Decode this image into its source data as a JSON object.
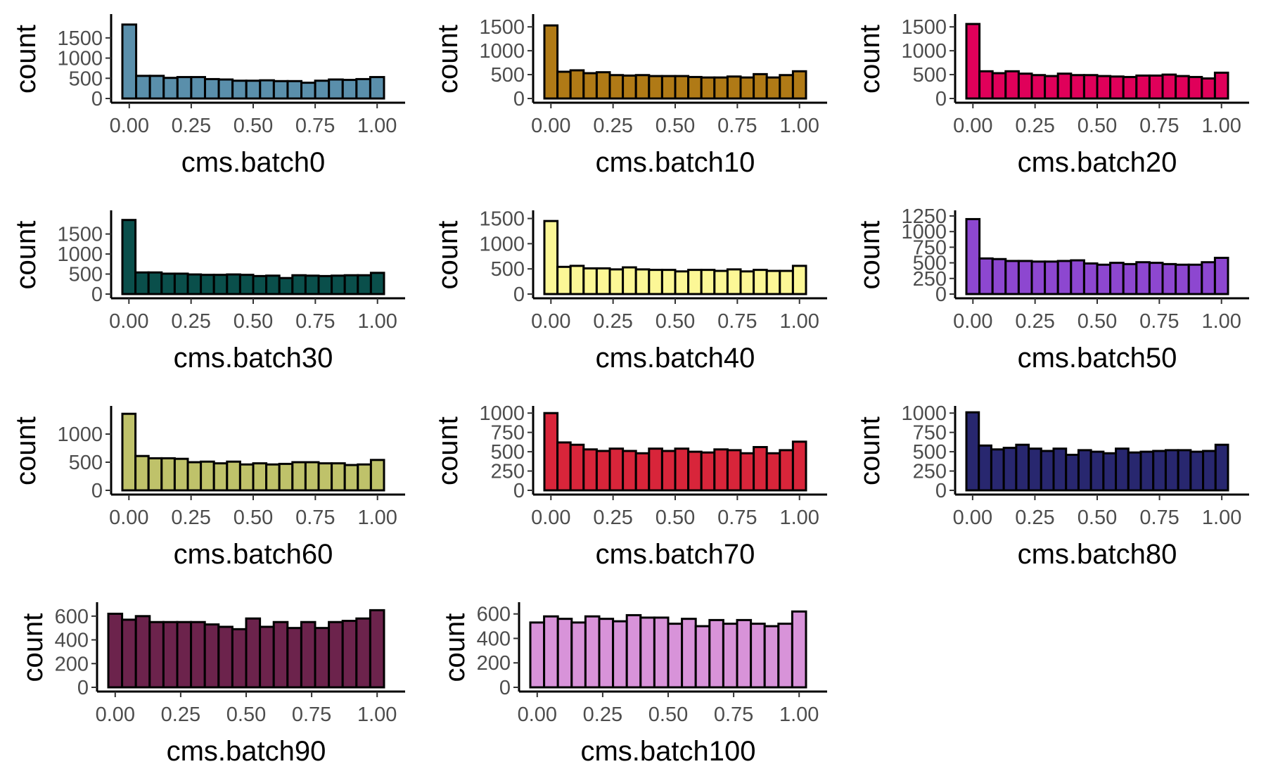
{
  "chart_data": [
    {
      "type": "bar",
      "xlabel": "cms.batch0",
      "ylabel": "count",
      "color": "#5a8fab",
      "xlim": [
        0,
        1
      ],
      "xticks": [
        "0.00",
        "0.25",
        "0.50",
        "0.75",
        "1.00"
      ],
      "ylim": [
        0,
        1950
      ],
      "yticks": [
        "0",
        "500",
        "1000",
        "1500"
      ],
      "ytick_values": [
        0,
        500,
        1000,
        1500
      ],
      "values": [
        1830,
        560,
        560,
        510,
        530,
        530,
        480,
        470,
        440,
        440,
        450,
        430,
        430,
        390,
        440,
        470,
        460,
        480,
        530
      ]
    },
    {
      "type": "bar",
      "xlabel": "cms.batch10",
      "ylabel": "count",
      "color": "#b07a16",
      "xlim": [
        0,
        1
      ],
      "xticks": [
        "0.00",
        "0.25",
        "0.50",
        "0.75",
        "1.00"
      ],
      "ylim": [
        0,
        1650
      ],
      "yticks": [
        "0",
        "500",
        "1000",
        "1500"
      ],
      "ytick_values": [
        0,
        500,
        1000,
        1500
      ],
      "values": [
        1530,
        560,
        590,
        530,
        550,
        490,
        480,
        490,
        470,
        470,
        470,
        450,
        440,
        440,
        460,
        440,
        510,
        440,
        490,
        570
      ]
    },
    {
      "type": "bar",
      "xlabel": "cms.batch20",
      "ylabel": "count",
      "color": "#e0005a",
      "xlim": [
        0,
        1
      ],
      "xticks": [
        "0.00",
        "0.25",
        "0.50",
        "0.75",
        "1.00"
      ],
      "ylim": [
        0,
        1650
      ],
      "yticks": [
        "0",
        "500",
        "1000",
        "1500"
      ],
      "ytick_values": [
        0,
        500,
        1000,
        1500
      ],
      "values": [
        1560,
        570,
        530,
        570,
        520,
        490,
        470,
        520,
        490,
        490,
        470,
        460,
        450,
        480,
        480,
        500,
        470,
        450,
        420,
        540
      ]
    },
    {
      "type": "bar",
      "xlabel": "cms.batch30",
      "ylabel": "count",
      "color": "#0a4f4b",
      "xlim": [
        0,
        1
      ],
      "xticks": [
        "0.00",
        "0.25",
        "0.50",
        "0.75",
        "1.00"
      ],
      "ylim": [
        0,
        1950
      ],
      "yticks": [
        "0",
        "500",
        "1000",
        "1500"
      ],
      "ytick_values": [
        0,
        500,
        1000,
        1500
      ],
      "values": [
        1850,
        540,
        540,
        510,
        510,
        490,
        480,
        480,
        490,
        480,
        450,
        460,
        400,
        470,
        460,
        450,
        460,
        470,
        470,
        530
      ]
    },
    {
      "type": "bar",
      "xlabel": "cms.batch40",
      "ylabel": "count",
      "color": "#fcf796",
      "xlim": [
        0,
        1
      ],
      "xticks": [
        "0.00",
        "0.25",
        "0.50",
        "0.75",
        "1.00"
      ],
      "ylim": [
        0,
        1550
      ],
      "yticks": [
        "0",
        "500",
        "1000",
        "1500"
      ],
      "ytick_values": [
        0,
        500,
        1000,
        1500
      ],
      "values": [
        1450,
        540,
        560,
        510,
        510,
        490,
        530,
        490,
        480,
        480,
        450,
        480,
        480,
        460,
        490,
        450,
        480,
        460,
        460,
        560
      ]
    },
    {
      "type": "bar",
      "xlabel": "cms.batch50",
      "ylabel": "count",
      "color": "#8d47d0",
      "xlim": [
        0,
        1
      ],
      "xticks": [
        "0.00",
        "0.25",
        "0.50",
        "0.75",
        "1.00"
      ],
      "ylim": [
        0,
        1250
      ],
      "yticks": [
        "0",
        "250",
        "500",
        "750",
        "1000",
        "1250"
      ],
      "ytick_values": [
        0,
        250,
        500,
        750,
        1000,
        1250
      ],
      "values": [
        1200,
        570,
        560,
        530,
        530,
        520,
        520,
        530,
        540,
        490,
        470,
        500,
        480,
        510,
        500,
        480,
        470,
        470,
        510,
        580
      ]
    },
    {
      "type": "bar",
      "xlabel": "cms.batch60",
      "ylabel": "count",
      "color": "#bfc26a",
      "xlim": [
        0,
        1
      ],
      "xticks": [
        "0.00",
        "0.25",
        "0.50",
        "0.75",
        "1.00"
      ],
      "ylim": [
        0,
        1400
      ],
      "yticks": [
        "0",
        "500",
        "1000"
      ],
      "ytick_values": [
        0,
        500,
        1000
      ],
      "values": [
        1360,
        610,
        570,
        570,
        560,
        500,
        510,
        480,
        510,
        460,
        480,
        460,
        470,
        500,
        500,
        480,
        480,
        450,
        460,
        540
      ]
    },
    {
      "type": "bar",
      "xlabel": "cms.batch70",
      "ylabel": "count",
      "color": "#d8253a",
      "xlim": [
        0,
        1
      ],
      "xticks": [
        "0.00",
        "0.25",
        "0.50",
        "0.75",
        "1.00"
      ],
      "ylim": [
        0,
        1020
      ],
      "yticks": [
        "0",
        "250",
        "500",
        "750",
        "1000"
      ],
      "ytick_values": [
        0,
        250,
        500,
        750,
        1000
      ],
      "values": [
        1000,
        620,
        590,
        530,
        510,
        540,
        510,
        480,
        540,
        510,
        540,
        500,
        490,
        530,
        520,
        480,
        560,
        480,
        520,
        630
      ]
    },
    {
      "type": "bar",
      "xlabel": "cms.batch80",
      "ylabel": "count",
      "color": "#28276f",
      "xlim": [
        0,
        1
      ],
      "xticks": [
        "0.00",
        "0.25",
        "0.50",
        "0.75",
        "1.00"
      ],
      "ylim": [
        0,
        1020
      ],
      "yticks": [
        "0",
        "250",
        "500",
        "750",
        "1000"
      ],
      "ytick_values": [
        0,
        250,
        500,
        750,
        1000
      ],
      "values": [
        1010,
        580,
        530,
        550,
        590,
        540,
        510,
        540,
        460,
        520,
        500,
        480,
        540,
        490,
        500,
        510,
        520,
        520,
        500,
        510,
        590
      ]
    },
    {
      "type": "bar",
      "xlabel": "cms.batch90",
      "ylabel": "count",
      "color": "#6c234c",
      "xlim": [
        0,
        1
      ],
      "xticks": [
        "0.00",
        "0.25",
        "0.50",
        "0.75",
        "1.00"
      ],
      "ylim": [
        0,
        670
      ],
      "yticks": [
        "0",
        "200",
        "400",
        "600"
      ],
      "ytick_values": [
        0,
        200,
        400,
        600
      ],
      "values": [
        620,
        570,
        600,
        550,
        550,
        550,
        550,
        530,
        510,
        490,
        580,
        510,
        550,
        500,
        550,
        500,
        550,
        560,
        580,
        650
      ]
    },
    {
      "type": "bar",
      "xlabel": "cms.batch100",
      "ylabel": "count",
      "color": "#d893d9",
      "xlim": [
        0,
        1
      ],
      "xticks": [
        "0.00",
        "0.25",
        "0.50",
        "0.75",
        "1.00"
      ],
      "ylim": [
        0,
        650
      ],
      "yticks": [
        "0",
        "200",
        "400",
        "600"
      ],
      "ytick_values": [
        0,
        200,
        400,
        600
      ],
      "values": [
        530,
        580,
        560,
        530,
        580,
        560,
        540,
        590,
        570,
        570,
        520,
        560,
        500,
        550,
        520,
        550,
        520,
        500,
        520,
        620
      ]
    }
  ]
}
